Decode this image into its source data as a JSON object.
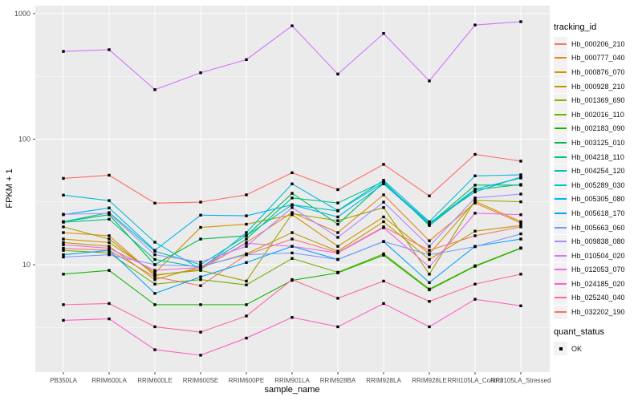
{
  "chart_data": {
    "type": "line",
    "xlabel": "sample_name",
    "ylabel": "FPKM + 1",
    "panel_bg": "#EBEBEB",
    "grid_color": "#FFFFFF",
    "point_color": "#000000",
    "tick_label_color": "#4D4D4D",
    "x_categories": [
      "PB350LA",
      "RRIM600LA",
      "RRIM600LE",
      "RRIM600SE",
      "RRIM600PE",
      "RRIM901LA",
      "RRIM928BA",
      "RRIM928LA",
      "RRIM928LE",
      "RRII105LA_Control",
      "RRII105LA_Stressed"
    ],
    "y_axis": {
      "scale": "log10",
      "ticks": [
        {
          "label": "10",
          "value": 10
        },
        {
          "label": "100",
          "value": 100
        },
        {
          "label": "1000",
          "value": 1000
        }
      ],
      "minor_values": [
        3.162,
        31.62,
        316.2
      ],
      "range_approx": [
        1.5,
        1150
      ]
    },
    "legend": {
      "tracking_title": "tracking_id",
      "quant_title": "quant_status",
      "quant_items": [
        {
          "label": "OK",
          "shape": "filled-square",
          "color": "#000000"
        }
      ]
    },
    "series": [
      {
        "name": "Hb_000206_210",
        "color": "#F8766D",
        "values": [
          13.5,
          13,
          8,
          6.8,
          12,
          16,
          12.5,
          20,
          13,
          17,
          20
        ]
      },
      {
        "name": "Hb_000777_040",
        "color": "#E78723",
        "values": [
          18,
          17,
          8.2,
          9.2,
          15,
          26,
          18,
          36,
          15.5,
          31,
          21.5
        ]
      },
      {
        "name": "Hb_000876_070",
        "color": "#D39200",
        "values": [
          16,
          15,
          8.6,
          19.8,
          21,
          25,
          14,
          24,
          12.2,
          32,
          22
        ]
      },
      {
        "name": "Hb_000928_210",
        "color": "#BA9C00",
        "values": [
          15,
          14,
          7.6,
          9.6,
          12.2,
          18,
          12.8,
          22,
          11,
          18.5,
          20.5
        ]
      },
      {
        "name": "Hb_001369_690",
        "color": "#9CA700",
        "values": [
          20,
          16,
          8.3,
          9,
          7.4,
          25.5,
          22.4,
          28.5,
          8.4,
          32.5,
          31.7
        ]
      },
      {
        "name": "Hb_002016_110",
        "color": "#6FB000",
        "values": [
          13,
          12.4,
          7,
          7.6,
          6.9,
          11.2,
          8.7,
          12.2,
          6.4,
          9.8,
          13.6
        ]
      },
      {
        "name": "Hb_002183_090",
        "color": "#13B700",
        "values": [
          8.4,
          9,
          4.8,
          4.8,
          4.8,
          7.5,
          8.6,
          11.9,
          6.3,
          9.7,
          13.5
        ]
      },
      {
        "name": "Hb_003125_010",
        "color": "#00BC51",
        "values": [
          22,
          25,
          10,
          16,
          17,
          37,
          21,
          45,
          21,
          43,
          43
        ]
      },
      {
        "name": "Hb_004218_110",
        "color": "#00C087",
        "values": [
          21.8,
          23,
          11,
          9.5,
          16,
          34,
          31,
          46,
          20.5,
          39.5,
          43.5
        ]
      },
      {
        "name": "Hb_004254_120",
        "color": "#00C0B3",
        "values": [
          22,
          26,
          12.8,
          10,
          17,
          30,
          26.8,
          45,
          21.5,
          38,
          50
        ]
      },
      {
        "name": "Hb_005289_030",
        "color": "#00BCD8",
        "values": [
          35.8,
          32.4,
          15.1,
          9.2,
          18,
          44,
          27,
          47,
          22,
          51,
          52
        ]
      },
      {
        "name": "Hb_005305_080",
        "color": "#00B3F2",
        "values": [
          25,
          28.3,
          13,
          24.8,
          24.5,
          30,
          24,
          44,
          21,
          40,
          49
        ]
      },
      {
        "name": "Hb_005618_170",
        "color": "#00A5FF",
        "values": [
          12,
          13,
          5.9,
          8,
          10.4,
          14,
          11,
          15.3,
          7.2,
          14,
          16
        ]
      },
      {
        "name": "Hb_005663_060",
        "color": "#7C96FF",
        "values": [
          11.5,
          12,
          10,
          9.7,
          12,
          12.4,
          11,
          15.3,
          12,
          13.9,
          17.6
        ]
      },
      {
        "name": "Hb_009838_080",
        "color": "#A98AFF",
        "values": [
          25.2,
          25.6,
          12,
          10.5,
          14,
          28.5,
          16.5,
          31.5,
          14,
          34,
          36.5
        ]
      },
      {
        "name": "Hb_010504_020",
        "color": "#D076FF",
        "values": [
          500,
          516,
          248,
          338,
          430,
          800,
          330,
          695,
          291,
          812,
          863
        ]
      },
      {
        "name": "Hb_012053_070",
        "color": "#F166E8",
        "values": [
          14.4,
          13.5,
          9,
          9.5,
          14.8,
          14,
          12.4,
          19.7,
          9.6,
          25.7,
          25
        ]
      },
      {
        "name": "Hb_024185_020",
        "color": "#FF61C7",
        "values": [
          3.6,
          3.7,
          2.1,
          1.9,
          2.6,
          3.8,
          3.2,
          4.9,
          3.2,
          5.3,
          4.7
        ]
      },
      {
        "name": "Hb_025240_040",
        "color": "#FF689E",
        "values": [
          4.8,
          4.9,
          3.2,
          2.9,
          3.9,
          7.6,
          5.4,
          7.4,
          5.1,
          7.0,
          8.4
        ]
      },
      {
        "name": "Hb_032202_190",
        "color": "#FF6C67",
        "values": [
          48.7,
          51.6,
          30.9,
          31.5,
          36,
          54,
          39.6,
          63,
          35.3,
          75.6,
          66.8
        ]
      }
    ]
  }
}
